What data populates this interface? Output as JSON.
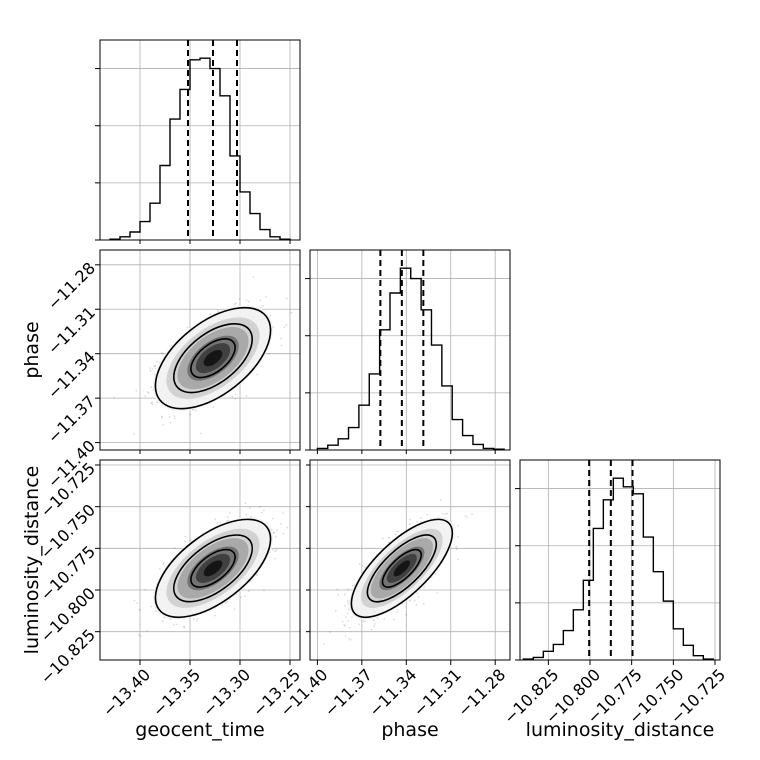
{
  "chart_data": {
    "type": "corner",
    "parameters": [
      "geocent_time",
      "phase",
      "luminosity_distance"
    ],
    "axis_labels": {
      "geocent_time": "geocent_time",
      "phase": "phase",
      "luminosity_distance": "luminosity_distance"
    },
    "ranges": {
      "geocent_time": [
        -13.44,
        -13.24
      ],
      "phase": [
        -11.405,
        -11.27
      ],
      "luminosity_distance": [
        -10.842,
        -10.722
      ]
    },
    "ticks": {
      "geocent_time": [
        {
          "value": -13.4,
          "label": "−13.40"
        },
        {
          "value": -13.35,
          "label": "−13.35"
        },
        {
          "value": -13.3,
          "label": "−13.30"
        },
        {
          "value": -13.25,
          "label": "−13.25"
        }
      ],
      "phase": [
        {
          "value": -11.4,
          "label": "−11.40"
        },
        {
          "value": -11.37,
          "label": "−11.37"
        },
        {
          "value": -11.34,
          "label": "−11.34"
        },
        {
          "value": -11.31,
          "label": "−11.31"
        },
        {
          "value": -11.28,
          "label": "−11.28"
        }
      ],
      "luminosity_distance": [
        {
          "value": -10.825,
          "label": "−10.825"
        },
        {
          "value": -10.8,
          "label": "−10.800"
        },
        {
          "value": -10.775,
          "label": "−10.775"
        },
        {
          "value": -10.75,
          "label": "−10.750"
        },
        {
          "value": -10.725,
          "label": "−10.725"
        }
      ]
    },
    "marginals": {
      "geocent_time": {
        "bin_edges": [
          -13.43,
          -13.42,
          -13.41,
          -13.4,
          -13.39,
          -13.38,
          -13.37,
          -13.36,
          -13.35,
          -13.34,
          -13.33,
          -13.32,
          -13.31,
          -13.3,
          -13.29,
          -13.28,
          -13.27,
          -13.26,
          -13.25
        ],
        "counts": [
          1,
          4,
          10,
          23,
          46,
          93,
          151,
          188,
          225,
          227,
          214,
          180,
          105,
          60,
          33,
          13,
          4,
          1
        ],
        "quantiles": [
          -13.352,
          -13.327,
          -13.303
        ]
      },
      "phase": {
        "bin_edges": [
          -11.4,
          -11.393,
          -11.386,
          -11.379,
          -11.372,
          -11.365,
          -11.358,
          -11.351,
          -11.344,
          -11.337,
          -11.33,
          -11.323,
          -11.316,
          -11.309,
          -11.302,
          -11.295,
          -11.288,
          -11.281,
          -11.274
        ],
        "counts": [
          2,
          6,
          14,
          28,
          56,
          95,
          150,
          196,
          227,
          214,
          175,
          131,
          80,
          38,
          18,
          7,
          2,
          1
        ],
        "quantiles": [
          -11.3575,
          -11.343,
          -11.3285
        ]
      },
      "luminosity_distance": {
        "bin_edges": [
          -10.84,
          -10.834,
          -10.828,
          -10.822,
          -10.816,
          -10.81,
          -10.804,
          -10.798,
          -10.792,
          -10.786,
          -10.78,
          -10.774,
          -10.768,
          -10.762,
          -10.756,
          -10.75,
          -10.744,
          -10.738,
          -10.732,
          -10.726
        ],
        "counts": [
          1,
          3,
          10,
          18,
          34,
          58,
          92,
          152,
          185,
          210,
          200,
          192,
          142,
          102,
          68,
          36,
          17,
          5,
          1
        ],
        "quantiles": [
          -10.8005,
          -10.7875,
          -10.7745
        ]
      }
    },
    "joint": [
      {
        "x": "geocent_time",
        "y": "phase",
        "mean": [
          -13.327,
          -11.343
        ],
        "std": [
          0.0245,
          0.0145
        ],
        "rho": 0.55
      },
      {
        "x": "geocent_time",
        "y": "luminosity_distance",
        "mean": [
          -13.327,
          -10.787
        ],
        "std": [
          0.0245,
          0.0125
        ],
        "rho": 0.6
      },
      {
        "x": "phase",
        "y": "luminosity_distance",
        "mean": [
          -11.343,
          -10.787
        ],
        "std": [
          0.0145,
          0.0125
        ],
        "rho": 0.72
      }
    ],
    "grid": true
  }
}
